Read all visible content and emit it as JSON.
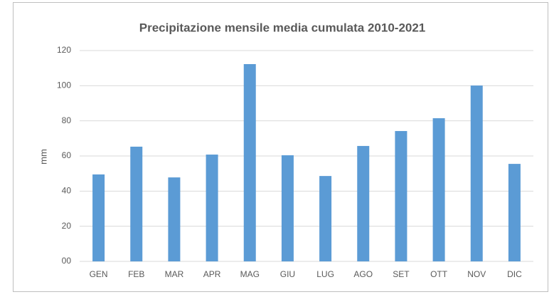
{
  "chart_data": {
    "type": "bar",
    "title": "Precipitazione mensile media cumulata 2010-2021",
    "y_label": "mm",
    "categories": [
      "GEN",
      "FEB",
      "MAR",
      "APR",
      "MAG",
      "GIU",
      "LUG",
      "AGO",
      "SET",
      "OTT",
      "NOV",
      "DIC"
    ],
    "values": [
      49.5,
      65.3,
      47.8,
      60.8,
      112.3,
      60.4,
      48.6,
      65.7,
      74.2,
      81.5,
      100.1,
      55.5
    ],
    "color": "#5b9bd5",
    "ylim": [
      0,
      120
    ],
    "yticks": [
      {
        "value": 0,
        "label": "00"
      },
      20,
      40,
      60,
      80,
      100,
      120
    ],
    "grid": true
  }
}
